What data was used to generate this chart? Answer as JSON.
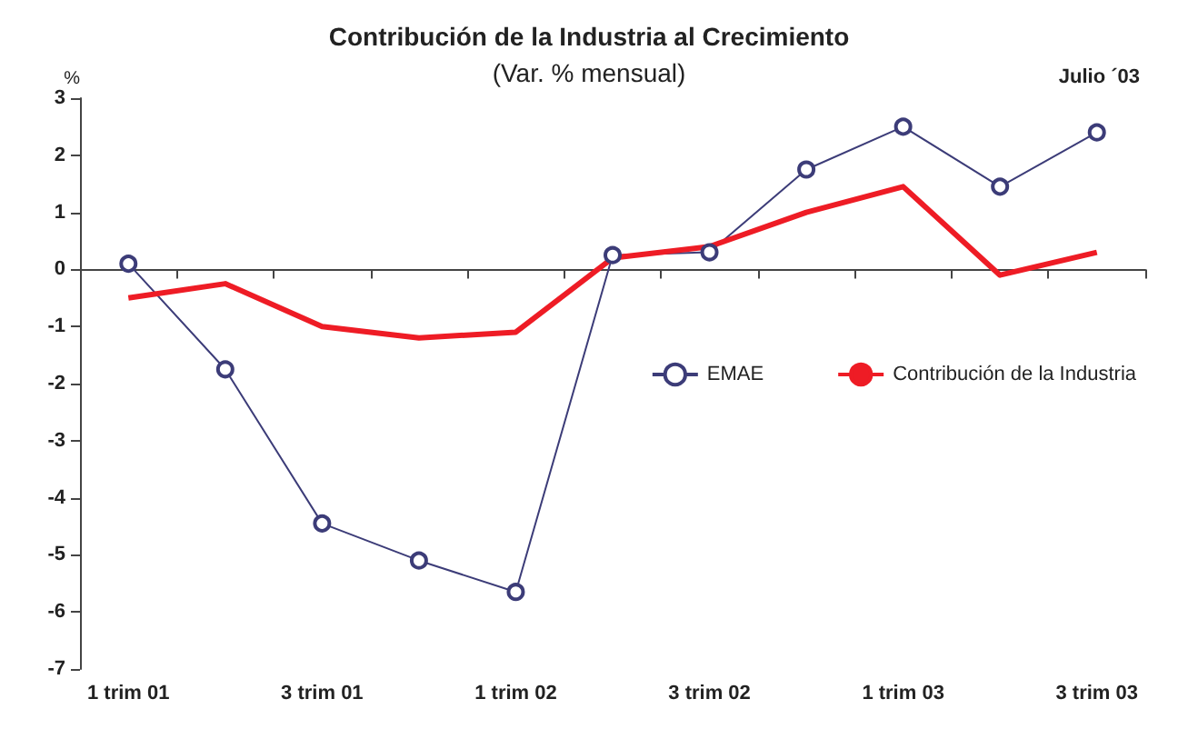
{
  "chart_data": {
    "type": "line",
    "title": "Contribución de la Industria al Crecimiento",
    "subtitle": "(Var. % mensual)",
    "ylabel": "%",
    "annotations": [
      "Julio ´03"
    ],
    "categories": [
      "1 trim 01",
      null,
      "3 trim 01",
      null,
      "1 trim 02",
      null,
      "3 trim 02",
      null,
      "1 trim 03",
      null,
      "3 trim 03"
    ],
    "series": [
      {
        "name": "EMAE",
        "color": "#3c3c78",
        "marker": "circle",
        "values": [
          0.1,
          -1.75,
          -4.45,
          -5.1,
          -5.65,
          0.25,
          0.3,
          1.75,
          2.5,
          1.45,
          2.4
        ]
      },
      {
        "name": "Contribución de la Industria",
        "color": "#ee1c25",
        "marker": "none",
        "values": [
          -0.5,
          -0.25,
          -1.0,
          -1.2,
          -1.1,
          0.2,
          0.4,
          1.0,
          1.45,
          -0.1,
          0.3
        ]
      }
    ],
    "ylim": [
      -7,
      3
    ],
    "yticks": [
      -7,
      -6,
      -5,
      -4,
      -3,
      -2,
      -1,
      0,
      1,
      2,
      3
    ],
    "legend": "right"
  }
}
